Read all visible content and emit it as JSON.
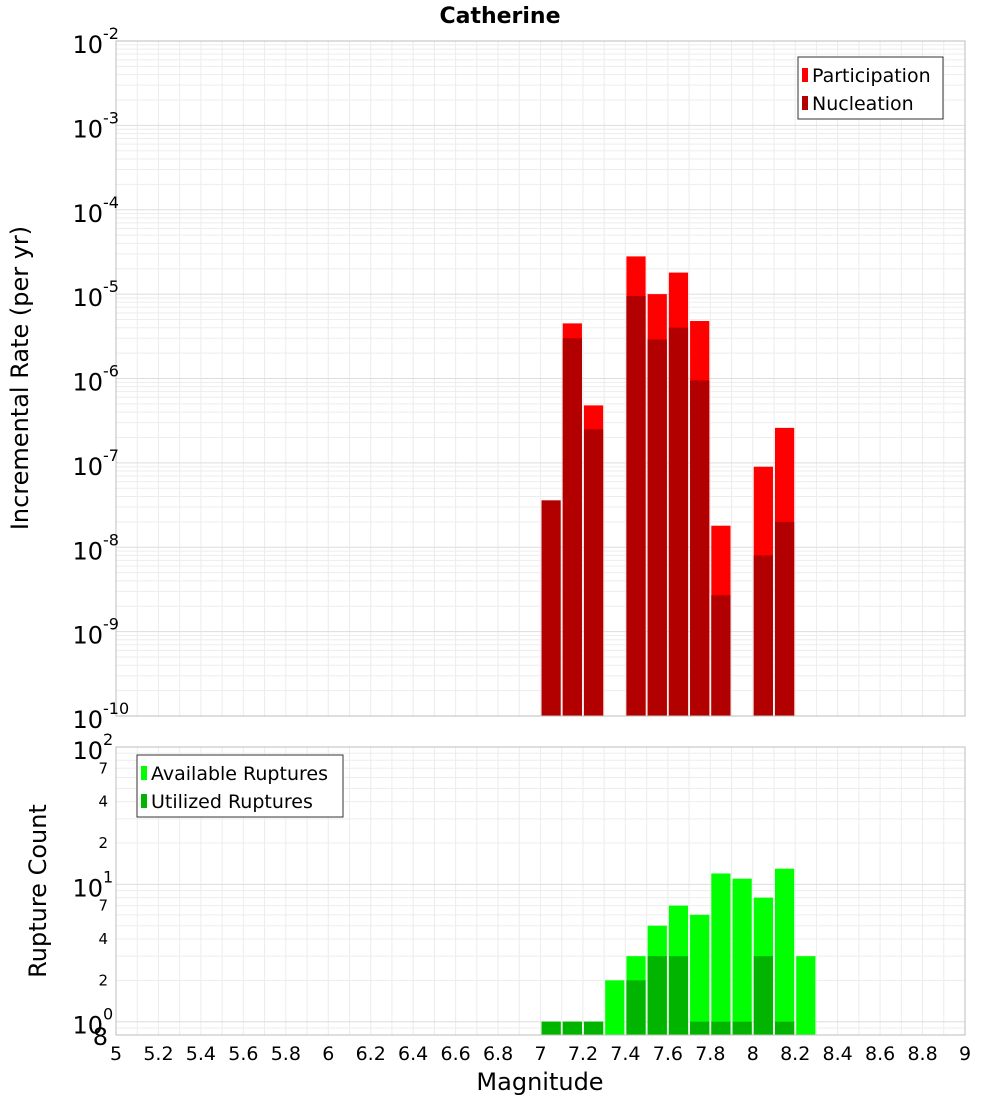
{
  "chart_data": [
    {
      "type": "bar",
      "title": "Catherine",
      "ylabel": "Incremental Rate (per yr)",
      "xlabel": "",
      "xlim": [
        5,
        9
      ],
      "ylim": [
        1e-10,
        0.01
      ],
      "yscale": "log",
      "grid": true,
      "legend_position": "top-right",
      "bar_width": 0.1,
      "y_ticks": [
        {
          "base": "10",
          "exp": "-10",
          "value": 1e-10
        },
        {
          "base": "10",
          "exp": "-9",
          "value": 1e-09
        },
        {
          "base": "10",
          "exp": "-8",
          "value": 1e-08
        },
        {
          "base": "10",
          "exp": "-7",
          "value": 1e-07
        },
        {
          "base": "10",
          "exp": "-6",
          "value": 1e-06
        },
        {
          "base": "10",
          "exp": "-5",
          "value": 1e-05
        },
        {
          "base": "10",
          "exp": "-4",
          "value": 0.0001
        },
        {
          "base": "10",
          "exp": "-3",
          "value": 0.001
        },
        {
          "base": "10",
          "exp": "-2",
          "value": 0.01
        }
      ],
      "series": [
        {
          "name": "Participation",
          "color": "#ff0000",
          "points": [
            {
              "x": 7.15,
              "y": 4.5e-06
            },
            {
              "x": 7.25,
              "y": 4.8e-07
            },
            {
              "x": 7.45,
              "y": 2.8e-05
            },
            {
              "x": 7.55,
              "y": 1e-05
            },
            {
              "x": 7.65,
              "y": 1.8e-05
            },
            {
              "x": 7.75,
              "y": 4.8e-06
            },
            {
              "x": 7.85,
              "y": 1.8e-08
            },
            {
              "x": 8.05,
              "y": 9e-08
            },
            {
              "x": 8.15,
              "y": 2.6e-07
            }
          ]
        },
        {
          "name": "Nucleation",
          "color": "#b20000",
          "points": [
            {
              "x": 7.05,
              "y": 3.6e-08
            },
            {
              "x": 7.15,
              "y": 3e-06
            },
            {
              "x": 7.25,
              "y": 2.5e-07
            },
            {
              "x": 7.45,
              "y": 9.5e-06
            },
            {
              "x": 7.55,
              "y": 2.9e-06
            },
            {
              "x": 7.65,
              "y": 4e-06
            },
            {
              "x": 7.75,
              "y": 9.5e-07
            },
            {
              "x": 7.85,
              "y": 2.7e-09
            },
            {
              "x": 8.05,
              "y": 8e-09
            },
            {
              "x": 8.15,
              "y": 2e-08
            }
          ]
        }
      ]
    },
    {
      "type": "bar",
      "title": "",
      "ylabel": "Rupture Count",
      "xlabel": "Magnitude",
      "xlim": [
        5,
        9
      ],
      "ylim": [
        0.8,
        100
      ],
      "yscale": "log",
      "grid": true,
      "legend_position": "top-left",
      "bar_width": 0.1,
      "x_ticks": [
        "5",
        "5.2",
        "5.4",
        "5.6",
        "5.8",
        "6",
        "6.2",
        "6.4",
        "6.6",
        "6.8",
        "7",
        "7.2",
        "7.4",
        "7.6",
        "7.8",
        "8",
        "8.2",
        "8.4",
        "8.6",
        "8.8",
        "9"
      ],
      "y_ticks": [
        {
          "base": "10",
          "exp": "0",
          "value": 1
        },
        {
          "base": "10",
          "exp": "1",
          "value": 10
        },
        {
          "base": "10",
          "exp": "2",
          "value": 100
        }
      ],
      "y_minor_labels": [
        {
          "label": "2",
          "value": 2
        },
        {
          "label": "4",
          "value": 4
        },
        {
          "label": "7",
          "value": 7
        },
        {
          "label": "2",
          "value": 20
        },
        {
          "label": "4",
          "value": 40
        },
        {
          "label": "7",
          "value": 70
        }
      ],
      "y_bottom_label": "8",
      "series": [
        {
          "name": "Available Ruptures",
          "color": "#00ff00",
          "points": [
            {
              "x": 7.05,
              "y": 1
            },
            {
              "x": 7.15,
              "y": 1
            },
            {
              "x": 7.25,
              "y": 1
            },
            {
              "x": 7.35,
              "y": 2
            },
            {
              "x": 7.45,
              "y": 3
            },
            {
              "x": 7.55,
              "y": 5
            },
            {
              "x": 7.65,
              "y": 7
            },
            {
              "x": 7.75,
              "y": 6
            },
            {
              "x": 7.85,
              "y": 12
            },
            {
              "x": 7.95,
              "y": 11
            },
            {
              "x": 8.05,
              "y": 8
            },
            {
              "x": 8.15,
              "y": 13
            },
            {
              "x": 8.25,
              "y": 3
            }
          ]
        },
        {
          "name": "Utilized Ruptures",
          "color": "#00b400",
          "points": [
            {
              "x": 7.05,
              "y": 1
            },
            {
              "x": 7.15,
              "y": 1
            },
            {
              "x": 7.25,
              "y": 1
            },
            {
              "x": 7.45,
              "y": 2
            },
            {
              "x": 7.55,
              "y": 3
            },
            {
              "x": 7.65,
              "y": 3
            },
            {
              "x": 7.75,
              "y": 1
            },
            {
              "x": 7.85,
              "y": 1
            },
            {
              "x": 7.95,
              "y": 1
            },
            {
              "x": 8.05,
              "y": 3
            },
            {
              "x": 8.15,
              "y": 1
            }
          ]
        }
      ]
    }
  ]
}
